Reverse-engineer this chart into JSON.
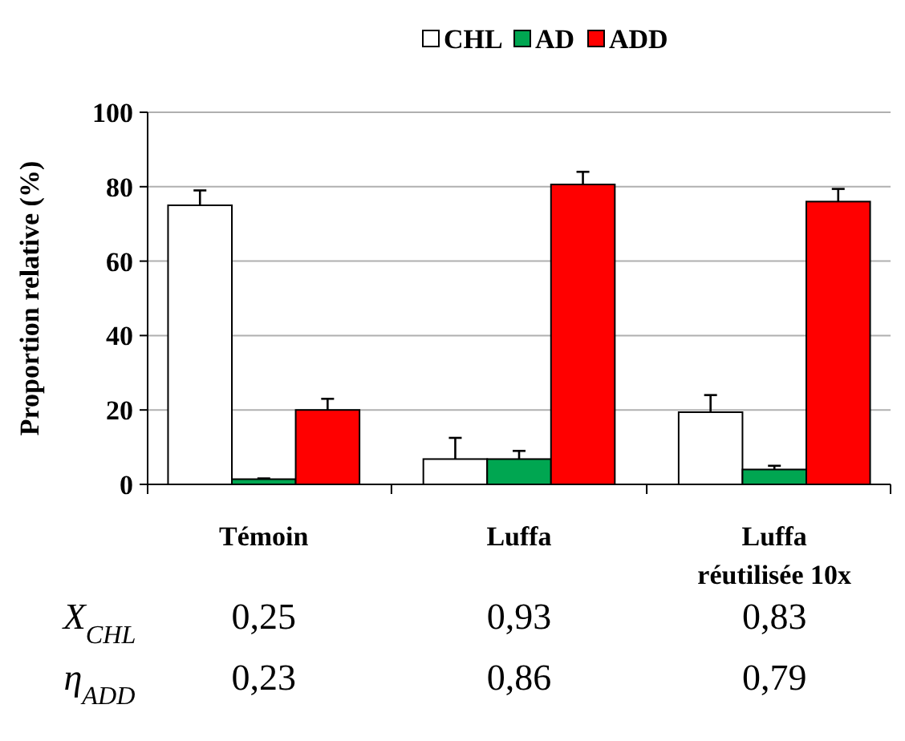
{
  "chart_data": {
    "type": "bar",
    "ylabel": "Proportion relative (%)",
    "categories": [
      "Témoin",
      "Luffa",
      "Luffa réutilisée 10x"
    ],
    "series": [
      {
        "name": "CHL",
        "color": "#ffffff",
        "values": [
          75,
          6.8,
          19.4
        ],
        "errors": [
          [
            75,
            79
          ],
          [
            6.8,
            12.5
          ],
          [
            19.4,
            24
          ]
        ]
      },
      {
        "name": "AD",
        "color": "#00a651",
        "values": [
          1.4,
          6.8,
          4
        ],
        "errors": [
          [
            1.4,
            1.6
          ],
          [
            6.8,
            9
          ],
          [
            4,
            5
          ]
        ]
      },
      {
        "name": "ADD",
        "color": "#ff0000",
        "values": [
          20,
          80.6,
          76
        ],
        "errors": [
          [
            20,
            23
          ],
          [
            80.6,
            84
          ],
          [
            76,
            79.4
          ]
        ]
      }
    ],
    "ylim": [
      0,
      100
    ],
    "yticks": [
      0,
      20,
      40,
      60,
      80,
      100
    ],
    "grid": "y",
    "legend": "top",
    "annotations": [
      "X$_{CHL}$",
      "0,25",
      "0,93",
      "0,83",
      "η$_{ADD}$",
      "0,23",
      "0,86",
      "0,79"
    ]
  }
}
